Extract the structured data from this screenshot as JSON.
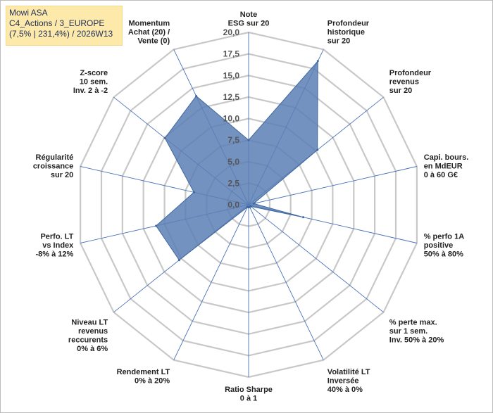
{
  "title_box": {
    "line1": "Mowi ASA",
    "line2": "C4_Actions / 3_EUROPE",
    "line3": "(7,5% | 231,4%) / 2026W13"
  },
  "chart_data": {
    "type": "radar",
    "rmin": 0,
    "rmax": 20,
    "tick_labels": [
      "0,0",
      "2,5",
      "5,0",
      "7,5",
      "10,0",
      "12,5",
      "15,0",
      "17,5",
      "20,0"
    ],
    "axes": [
      {
        "label": [
          "Note",
          "ESG sur 20"
        ],
        "value": 7.5
      },
      {
        "label": [
          "Profondeur",
          "historique",
          "sur 20"
        ],
        "value": 18.5
      },
      {
        "label": [
          "Profondeur",
          "revenus",
          "sur 20"
        ],
        "value": 10.2
      },
      {
        "label": [
          "Capi. bours.",
          "en MdEUR",
          "0 à 60 G€"
        ],
        "value": 0.6
      },
      {
        "label": [
          "% perfo 1A",
          "positive",
          "50% à 80%"
        ],
        "value": 6.5
      },
      {
        "label": [
          "% perte max.",
          "sur 1 sem.",
          "Inv. 50% à 20%"
        ],
        "value": 0.3
      },
      {
        "label": [
          "Volatilité LT",
          "Inversée",
          "40% à 0%"
        ],
        "value": 0.3
      },
      {
        "label": [
          "Ratio Sharpe",
          "0 à 1"
        ],
        "value": 0.3
      },
      {
        "label": [
          "Rendement LT",
          "0% à 20%"
        ],
        "value": 0.3
      },
      {
        "label": [
          "Niveau LT",
          "revenus",
          "reccurents",
          "0% à 6%"
        ],
        "value": 10.3
      },
      {
        "label": [
          "Perfo. LT",
          "vs Index",
          "-8% à 12%"
        ],
        "value": 11.0
      },
      {
        "label": [
          "Régularité",
          "croissance",
          "sur 20"
        ],
        "value": 6.5
      },
      {
        "label": [
          "Z-score",
          "10 sem.",
          "Inv. 2 à -2"
        ],
        "value": 12.4
      },
      {
        "label": [
          "Momentum",
          "Achat (20) /",
          "Vente (0)"
        ],
        "value": 14.0
      }
    ],
    "fill_color": "#5b7fb5",
    "stroke_color": "#3f66a0",
    "spoke_color": "#4a72b8",
    "grid_color": "#c8c8c8"
  }
}
